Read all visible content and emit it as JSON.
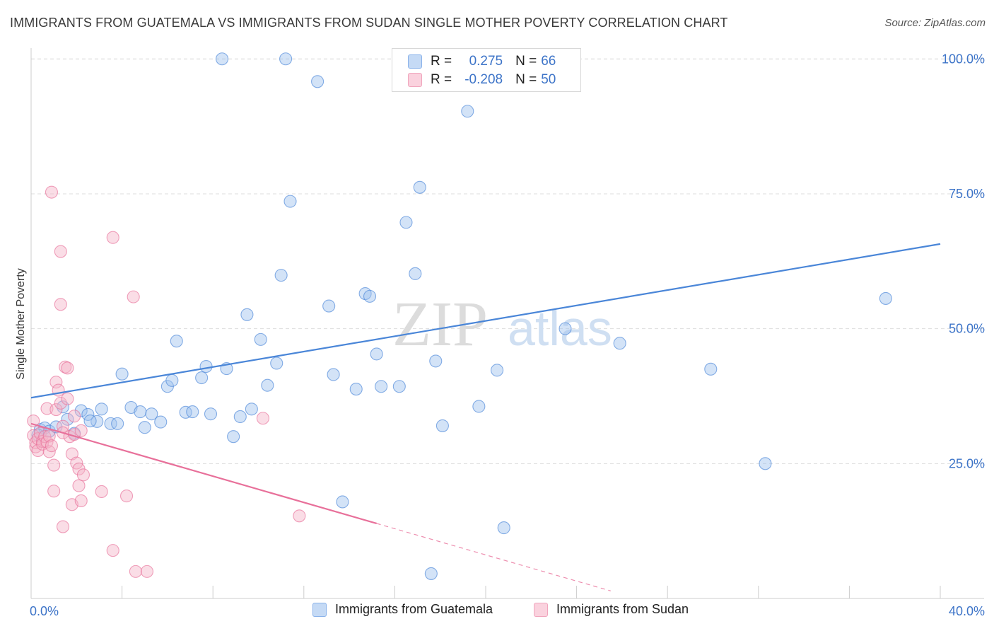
{
  "header": {
    "title": "IMMIGRANTS FROM GUATEMALA VS IMMIGRANTS FROM SUDAN SINGLE MOTHER POVERTY CORRELATION CHART",
    "source": "Source: ZipAtlas.com"
  },
  "watermark": {
    "zip": "ZIP",
    "atlas": "atlas"
  },
  "legend": {
    "r_label": "R =",
    "n_label": "N =",
    "rows": [
      {
        "r": "0.275",
        "n": "66",
        "color": "#9dc0ee"
      },
      {
        "r": "-0.208",
        "n": "50",
        "color": "#f5b3c8"
      }
    ]
  },
  "bottom_legend": [
    {
      "label": "Immigrants from Guatemala",
      "color": "#9dc0ee"
    },
    {
      "label": "Immigrants from Sudan",
      "color": "#f5b3c8"
    }
  ],
  "chart_data": {
    "type": "scatter",
    "title": "IMMIGRANTS FROM GUATEMALA VS IMMIGRANTS FROM SUDAN SINGLE MOTHER POVERTY CORRELATION CHART",
    "xlabel": "",
    "ylabel": "Single Mother Poverty",
    "xlim": [
      0,
      40
    ],
    "ylim": [
      0,
      102
    ],
    "x_tick_labels": [
      "0.0%",
      "40.0%"
    ],
    "y_ticks": [
      25,
      50,
      75,
      100
    ],
    "y_tick_labels": [
      "25.0%",
      "50.0%",
      "75.0%",
      "100.0%"
    ],
    "grid": true,
    "legend_position": "top-center",
    "series": [
      {
        "name": "Immigrants from Guatemala",
        "color": "#4a86d8",
        "fill": "#9dc0ee",
        "trend": {
          "x": [
            0,
            40
          ],
          "y": [
            37.2,
            65.7
          ],
          "dashed_from": null
        },
        "points": [
          [
            0.4,
            31.3
          ],
          [
            0.6,
            31.6
          ],
          [
            1.4,
            35.5
          ],
          [
            1.6,
            33.2
          ],
          [
            1.9,
            30.6
          ],
          [
            2.2,
            34.8
          ],
          [
            2.5,
            34.1
          ],
          [
            2.9,
            32.8
          ],
          [
            3.1,
            35.1
          ],
          [
            3.5,
            32.4
          ],
          [
            3.8,
            32.4
          ],
          [
            4.0,
            41.6
          ],
          [
            4.4,
            35.4
          ],
          [
            4.8,
            34.6
          ],
          [
            5.0,
            31.7
          ],
          [
            5.3,
            34.2
          ],
          [
            5.7,
            32.7
          ],
          [
            6.0,
            39.3
          ],
          [
            6.2,
            40.4
          ],
          [
            6.4,
            47.7
          ],
          [
            6.8,
            34.5
          ],
          [
            7.1,
            34.6
          ],
          [
            7.5,
            40.9
          ],
          [
            7.7,
            43.0
          ],
          [
            7.9,
            34.2
          ],
          [
            8.4,
            100.0
          ],
          [
            8.6,
            42.6
          ],
          [
            8.9,
            30.0
          ],
          [
            9.2,
            33.7
          ],
          [
            9.5,
            52.6
          ],
          [
            9.7,
            35.1
          ],
          [
            10.1,
            48.0
          ],
          [
            10.4,
            39.5
          ],
          [
            10.8,
            43.6
          ],
          [
            11.0,
            59.9
          ],
          [
            11.2,
            100.0
          ],
          [
            11.4,
            73.6
          ],
          [
            12.6,
            95.8
          ],
          [
            13.1,
            54.2
          ],
          [
            13.3,
            41.5
          ],
          [
            13.7,
            17.9
          ],
          [
            14.3,
            38.8
          ],
          [
            14.7,
            56.5
          ],
          [
            14.9,
            56.0
          ],
          [
            15.2,
            45.3
          ],
          [
            15.4,
            39.3
          ],
          [
            16.2,
            39.3
          ],
          [
            16.5,
            69.7
          ],
          [
            16.9,
            60.2
          ],
          [
            17.1,
            76.2
          ],
          [
            17.6,
            4.6
          ],
          [
            17.8,
            44.0
          ],
          [
            18.1,
            32.0
          ],
          [
            19.2,
            90.3
          ],
          [
            19.7,
            35.6
          ],
          [
            20.5,
            42.3
          ],
          [
            20.8,
            13.1
          ],
          [
            23.5,
            50.0
          ],
          [
            25.9,
            47.3
          ],
          [
            29.9,
            42.5
          ],
          [
            32.3,
            25.0
          ],
          [
            37.6,
            55.6
          ],
          [
            0.3,
            30.3
          ],
          [
            0.8,
            31.0
          ],
          [
            1.1,
            31.8
          ],
          [
            2.6,
            32.9
          ]
        ]
      },
      {
        "name": "Immigrants from Sudan",
        "color": "#e8709a",
        "fill": "#f5b3c8",
        "trend": {
          "x": [
            0,
            15.2,
            25.5
          ],
          "y": [
            32.4,
            13.9,
            1.4
          ],
          "dashed_from": 15.2
        },
        "points": [
          [
            0.1,
            32.9
          ],
          [
            0.1,
            30.2
          ],
          [
            0.2,
            28.1
          ],
          [
            0.2,
            28.9
          ],
          [
            0.3,
            29.6
          ],
          [
            0.3,
            27.4
          ],
          [
            0.4,
            30.6
          ],
          [
            0.5,
            29.1
          ],
          [
            0.5,
            28.6
          ],
          [
            0.6,
            30.0
          ],
          [
            0.7,
            29.0
          ],
          [
            0.7,
            35.2
          ],
          [
            0.8,
            27.2
          ],
          [
            0.8,
            30.1
          ],
          [
            0.9,
            28.3
          ],
          [
            0.9,
            75.3
          ],
          [
            1.0,
            19.9
          ],
          [
            1.0,
            24.7
          ],
          [
            1.1,
            40.1
          ],
          [
            1.1,
            35.0
          ],
          [
            1.2,
            38.6
          ],
          [
            1.3,
            36.2
          ],
          [
            1.3,
            64.3
          ],
          [
            1.3,
            54.5
          ],
          [
            1.4,
            31.9
          ],
          [
            1.4,
            30.7
          ],
          [
            1.4,
            13.3
          ],
          [
            1.5,
            42.9
          ],
          [
            1.6,
            42.7
          ],
          [
            1.6,
            37.0
          ],
          [
            1.7,
            30.0
          ],
          [
            1.8,
            26.8
          ],
          [
            1.8,
            17.4
          ],
          [
            1.9,
            33.8
          ],
          [
            1.9,
            30.4
          ],
          [
            2.0,
            25.1
          ],
          [
            2.1,
            24.0
          ],
          [
            2.1,
            20.9
          ],
          [
            2.2,
            18.1
          ],
          [
            2.2,
            31.1
          ],
          [
            2.3,
            22.9
          ],
          [
            3.1,
            19.8
          ],
          [
            3.6,
            8.9
          ],
          [
            3.6,
            66.9
          ],
          [
            4.2,
            19.0
          ],
          [
            4.5,
            55.9
          ],
          [
            4.6,
            5.0
          ],
          [
            5.1,
            5.0
          ],
          [
            10.2,
            33.4
          ],
          [
            11.8,
            15.3
          ]
        ]
      }
    ]
  }
}
